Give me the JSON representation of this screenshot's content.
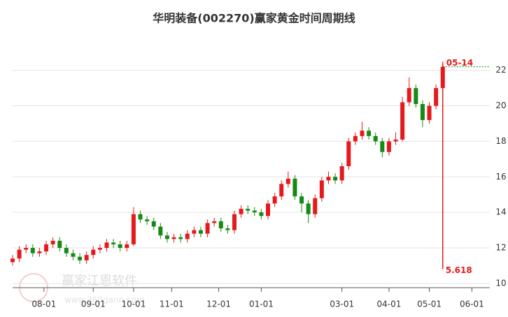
{
  "chart_data": {
    "type": "candlestick",
    "title": "华明装备(002270)赢家黄金时间周期线",
    "up_color": "#e41a1c",
    "down_color": "#168a16",
    "x": [
      0,
      3,
      6,
      9,
      12,
      15,
      18,
      21,
      24,
      27,
      30,
      33,
      36,
      39,
      42,
      45,
      48,
      51,
      54,
      57,
      60,
      63,
      66,
      69,
      72,
      75,
      78,
      81,
      84,
      87,
      90,
      93,
      96,
      99,
      102,
      105,
      108,
      111,
      114,
      117,
      120,
      123,
      126,
      129,
      132,
      135,
      138,
      141,
      144,
      147,
      150,
      153,
      156,
      159,
      162,
      165,
      168,
      171,
      174,
      177,
      180,
      183,
      186,
      189,
      192
    ],
    "open": [
      11.2,
      11.4,
      11.9,
      12.0,
      11.7,
      11.8,
      12.2,
      12.4,
      12.0,
      11.7,
      11.5,
      11.3,
      11.6,
      11.9,
      12.0,
      12.3,
      12.2,
      12.0,
      12.2,
      13.9,
      13.6,
      13.5,
      13.2,
      12.7,
      12.5,
      12.6,
      12.5,
      12.8,
      13.0,
      12.8,
      13.4,
      13.5,
      13.1,
      13.0,
      13.9,
      14.2,
      14.1,
      14.0,
      13.8,
      14.5,
      14.9,
      15.6,
      15.9,
      14.9,
      14.5,
      13.9,
      14.8,
      15.8,
      16.0,
      15.8,
      16.6,
      18.0,
      18.3,
      18.6,
      18.3,
      18.0,
      17.4,
      18.0,
      18.1,
      20.2,
      21.0,
      20.1,
      19.2,
      20.0,
      21.0
    ],
    "high": [
      11.6,
      12.1,
      12.2,
      12.2,
      12.0,
      12.4,
      12.6,
      12.6,
      12.2,
      11.9,
      11.7,
      11.8,
      12.1,
      12.2,
      12.5,
      12.5,
      12.4,
      12.4,
      14.3,
      14.1,
      13.8,
      13.7,
      13.4,
      12.9,
      12.8,
      12.8,
      13.0,
      13.2,
      13.2,
      13.6,
      13.7,
      13.7,
      13.3,
      14.1,
      14.4,
      14.4,
      14.3,
      14.2,
      14.7,
      15.1,
      15.8,
      16.3,
      16.1,
      15.1,
      14.7,
      15.0,
      16.0,
      16.3,
      16.2,
      16.8,
      18.2,
      18.5,
      19.1,
      18.8,
      18.5,
      18.2,
      18.2,
      18.5,
      20.5,
      21.6,
      21.2,
      20.3,
      20.2,
      21.2,
      22.5
    ],
    "low": [
      11.0,
      11.2,
      11.7,
      11.5,
      11.5,
      11.6,
      12.0,
      11.8,
      11.5,
      11.3,
      11.1,
      11.1,
      11.4,
      11.7,
      11.8,
      12.0,
      11.8,
      11.8,
      12.1,
      13.4,
      13.3,
      13.0,
      12.5,
      12.3,
      12.3,
      12.3,
      12.3,
      12.6,
      12.6,
      12.6,
      13.2,
      12.9,
      12.8,
      12.8,
      13.7,
      13.9,
      13.8,
      13.6,
      13.6,
      14.3,
      14.7,
      15.4,
      14.7,
      14.0,
      13.4,
      13.7,
      14.6,
      15.6,
      15.6,
      15.6,
      16.4,
      17.8,
      18.1,
      18.1,
      17.8,
      17.1,
      17.2,
      17.8,
      18.0,
      20.0,
      19.9,
      18.8,
      19.0,
      19.8,
      20.8
    ],
    "close": [
      11.4,
      11.9,
      12.0,
      11.7,
      11.8,
      12.2,
      12.4,
      12.0,
      11.7,
      11.5,
      11.3,
      11.6,
      11.9,
      12.0,
      12.3,
      12.2,
      12.0,
      12.2,
      13.9,
      13.6,
      13.5,
      13.2,
      12.7,
      12.5,
      12.6,
      12.5,
      12.8,
      13.0,
      12.8,
      13.4,
      13.5,
      13.1,
      13.0,
      13.9,
      14.2,
      14.1,
      14.0,
      13.8,
      14.5,
      14.9,
      15.6,
      15.9,
      14.9,
      14.5,
      13.9,
      14.8,
      15.8,
      16.0,
      15.8,
      16.6,
      18.0,
      18.3,
      18.6,
      18.3,
      18.0,
      17.4,
      18.0,
      18.1,
      20.2,
      21.0,
      20.1,
      19.2,
      20.0,
      21.0,
      22.2
    ],
    "xlim": [
      0,
      213
    ],
    "xticks": [
      {
        "value": 14,
        "label": "08-01"
      },
      {
        "value": 36,
        "label": "09-01"
      },
      {
        "value": 54,
        "label": "10-01"
      },
      {
        "value": 71,
        "label": "11-01"
      },
      {
        "value": 92,
        "label": "12-01"
      },
      {
        "value": 111,
        "label": "01-01"
      },
      {
        "value": 147,
        "label": "03-01"
      },
      {
        "value": 168,
        "label": "04-01"
      },
      {
        "value": 186,
        "label": "05-01"
      },
      {
        "value": 205,
        "label": "06-01"
      }
    ],
    "ylim": [
      9.76,
      23.6
    ],
    "yticks": [
      10,
      12,
      14,
      16,
      18,
      20,
      22
    ],
    "grid": true,
    "cycle_line": {
      "x": 192,
      "y_top": 22.4,
      "y_bottom": 10.8,
      "color": "#e41a1c",
      "label_top": "05-14",
      "label_bottom": "5.618"
    },
    "watermark": {
      "name": "赢家江恩软件",
      "url": "www.360gann.com"
    }
  }
}
